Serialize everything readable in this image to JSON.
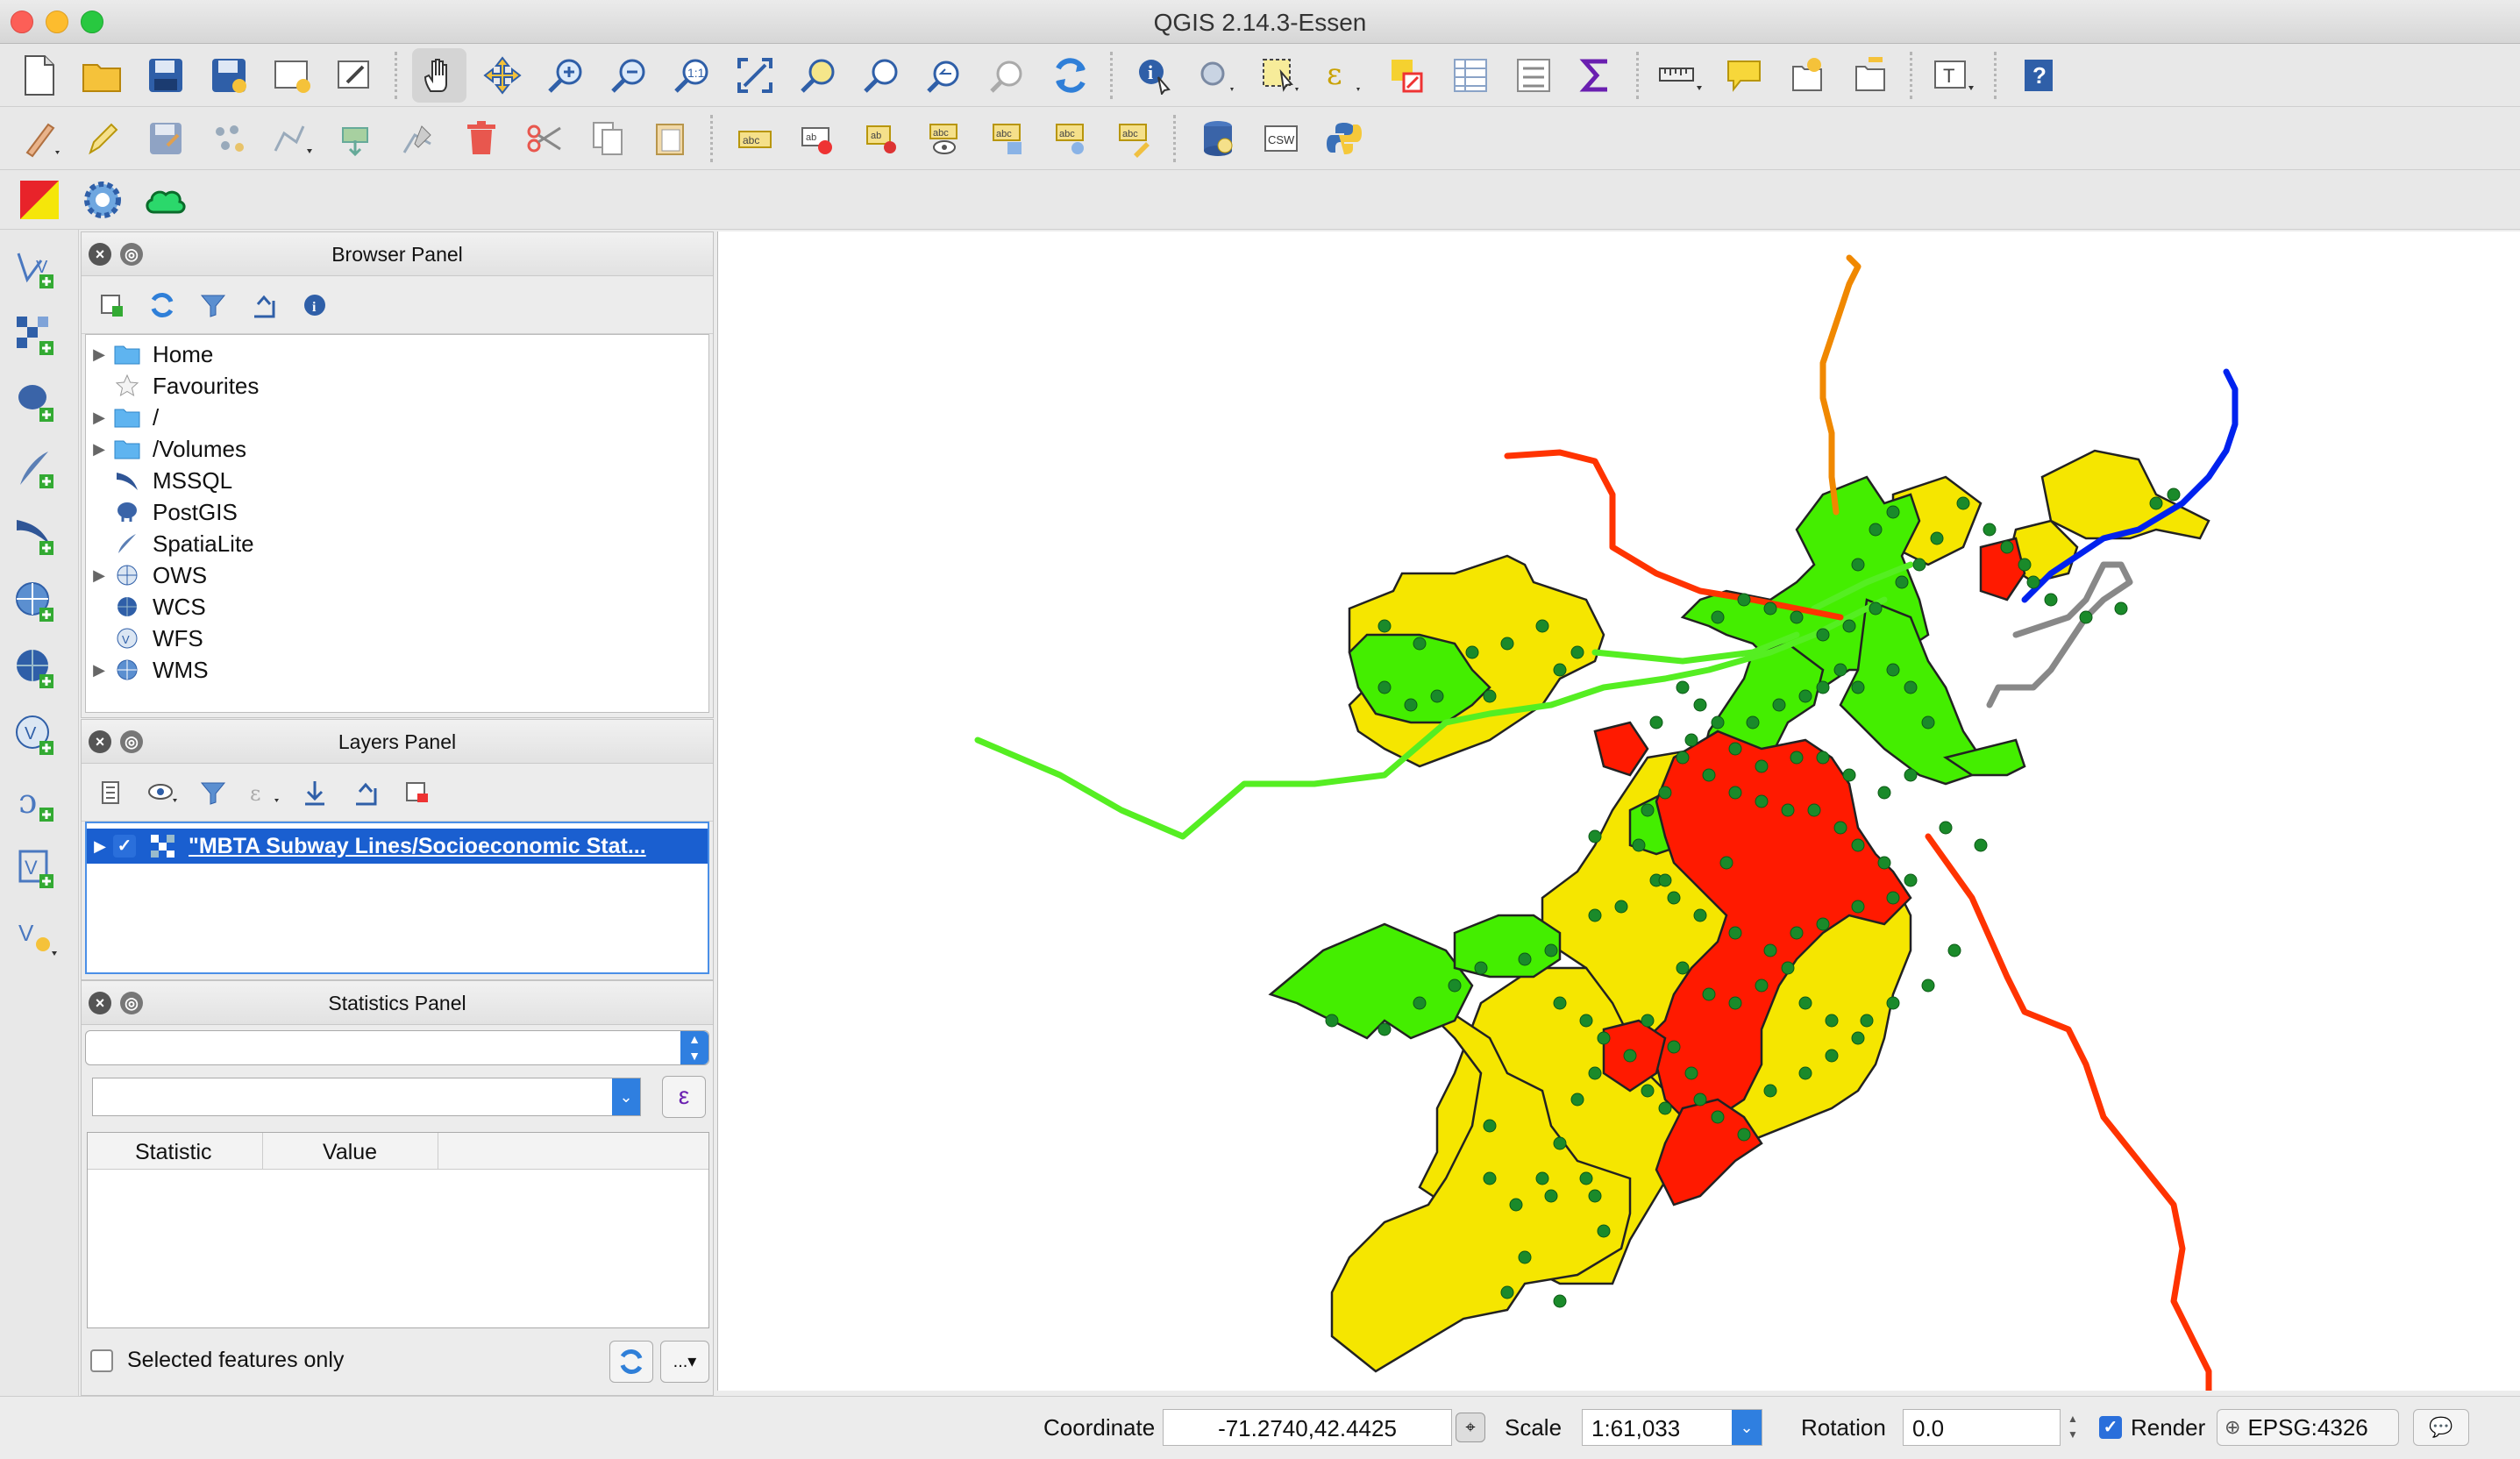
{
  "window": {
    "title": "QGIS 2.14.3-Essen"
  },
  "browser_panel": {
    "title": "Browser Panel",
    "items": [
      {
        "label": "Home",
        "expandable": true,
        "icon": "folder-icon"
      },
      {
        "label": "Favourites",
        "expandable": false,
        "icon": "star-icon"
      },
      {
        "label": "/",
        "expandable": true,
        "icon": "folder-icon"
      },
      {
        "label": "/Volumes",
        "expandable": true,
        "icon": "folder-icon"
      },
      {
        "label": "MSSQL",
        "expandable": false,
        "icon": "mssql-icon"
      },
      {
        "label": "PostGIS",
        "expandable": false,
        "icon": "postgis-elephant-icon"
      },
      {
        "label": "SpatiaLite",
        "expandable": false,
        "icon": "spatialite-feather-icon"
      },
      {
        "label": "OWS",
        "expandable": true,
        "icon": "globe-icon"
      },
      {
        "label": "WCS",
        "expandable": false,
        "icon": "wcs-globe-icon"
      },
      {
        "label": "WFS",
        "expandable": false,
        "icon": "wfs-globe-icon"
      },
      {
        "label": "WMS",
        "expandable": true,
        "icon": "wms-globe-icon"
      }
    ]
  },
  "layers_panel": {
    "title": "Layers Panel",
    "layers": [
      {
        "label": "\"MBTA Subway Lines/Socioeconomic Stat...",
        "checked": true,
        "selected": true
      }
    ]
  },
  "statistics_panel": {
    "title": "Statistics Panel",
    "layer_select": "",
    "field_select": "",
    "expression_button": "ε",
    "columns": [
      "Statistic",
      "Value"
    ],
    "selected_only_label": "Selected features only",
    "more_button": "...▾"
  },
  "statusbar": {
    "coordinate_label": "Coordinate",
    "coordinate_value": "-71.2740,42.4425",
    "scale_label": "Scale",
    "scale_value": "1:61,033",
    "rotation_label": "Rotation",
    "rotation_value": "0.0",
    "render_label": "Render",
    "render_checked": true,
    "crs_label": "EPSG:4326"
  },
  "map": {
    "legend_colors": {
      "low": "#ff1a00",
      "mid": "#f5e600",
      "high": "#44ee00"
    },
    "line_colors": {
      "red_line": "#ff3300",
      "orange_line": "#f08800",
      "green_line": "#55ee22",
      "blue_line": "#0022ee",
      "silver_line": "#888888"
    }
  }
}
